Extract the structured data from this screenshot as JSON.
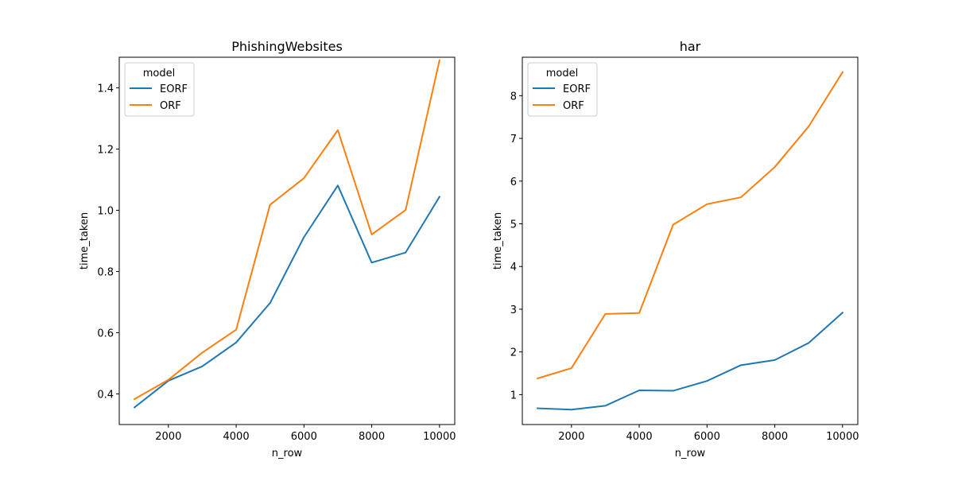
{
  "colors": {
    "EORF": "#1f77b4",
    "ORF": "#ff7f0e"
  },
  "chart_data": [
    {
      "type": "line",
      "title": "PhishingWebsites",
      "xlabel": "n_row",
      "ylabel": "time_taken",
      "x": [
        1000,
        2000,
        3000,
        4000,
        5000,
        6000,
        7000,
        8000,
        9000,
        10000
      ],
      "xticks": [
        2000,
        4000,
        6000,
        8000,
        10000
      ],
      "xtick_labels": [
        "2000",
        "4000",
        "6000",
        "8000",
        "10000"
      ],
      "yticks": [
        0.4,
        0.6,
        0.8,
        1.0,
        1.2,
        1.4
      ],
      "ytick_labels": [
        "0.4",
        "0.6",
        "0.8",
        "1.0",
        "1.2",
        "1.4"
      ],
      "xlim": [
        550,
        10450
      ],
      "ylim": [
        0.3,
        1.5
      ],
      "legend": {
        "title": "model",
        "placement": "upper left"
      },
      "series": [
        {
          "name": "EORF",
          "values": [
            0.356,
            0.443,
            0.49,
            0.568,
            0.697,
            0.912,
            1.081,
            0.829,
            0.862,
            1.044
          ]
        },
        {
          "name": "ORF",
          "values": [
            0.383,
            0.446,
            0.535,
            0.61,
            1.018,
            1.105,
            1.262,
            0.921,
            1.001,
            1.49
          ]
        }
      ]
    },
    {
      "type": "line",
      "title": "har",
      "xlabel": "n_row",
      "ylabel": "time_taken",
      "x": [
        1000,
        2000,
        3000,
        4000,
        5000,
        6000,
        7000,
        8000,
        9000,
        10000
      ],
      "xticks": [
        2000,
        4000,
        6000,
        8000,
        10000
      ],
      "xtick_labels": [
        "2000",
        "4000",
        "6000",
        "8000",
        "10000"
      ],
      "yticks": [
        1,
        2,
        3,
        4,
        5,
        6,
        7,
        8
      ],
      "ytick_labels": [
        "1",
        "2",
        "3",
        "4",
        "5",
        "6",
        "7",
        "8"
      ],
      "xlim": [
        550,
        10450
      ],
      "ylim": [
        0.3,
        8.9
      ],
      "legend": {
        "title": "model",
        "placement": "upper left"
      },
      "series": [
        {
          "name": "EORF",
          "values": [
            0.68,
            0.65,
            0.74,
            1.1,
            1.09,
            1.32,
            1.69,
            1.81,
            2.21,
            2.92
          ]
        },
        {
          "name": "ORF",
          "values": [
            1.38,
            1.62,
            2.89,
            2.91,
            4.98,
            5.46,
            5.62,
            6.33,
            7.28,
            8.55
          ]
        }
      ]
    }
  ]
}
